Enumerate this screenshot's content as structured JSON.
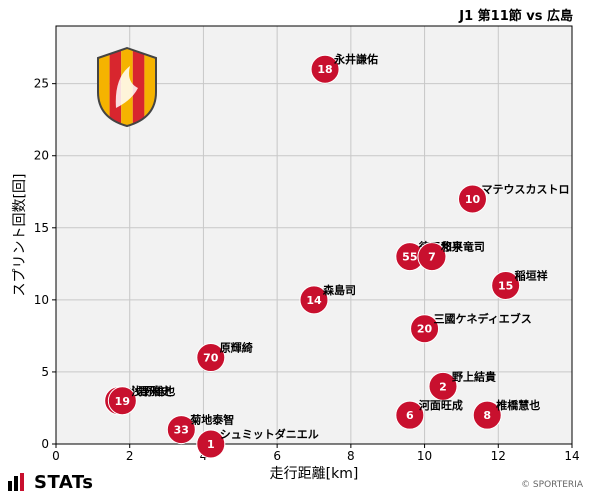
{
  "header": {
    "match_title": "J1 第11節 vs 広島"
  },
  "footer": {
    "brand": "STATs",
    "copyright": "© SPORTERIA"
  },
  "colors": {
    "marker": "#c8102e",
    "marker_text": "#ffffff",
    "grid": "#c8c8c8",
    "plot_bg": "#f2f2f2",
    "crest_yellow": "#f5b300",
    "crest_red": "#d8262e",
    "crest_outline": "#444444"
  },
  "icons": {
    "logo": "stats-bars-icon",
    "crest": "club-crest-icon"
  },
  "chart_data": {
    "type": "scatter",
    "xlabel": "走行距離[km]",
    "ylabel": "スプリント回数[回]",
    "xlim": [
      0,
      14
    ],
    "ylim": [
      0,
      29
    ],
    "xticks": [
      0,
      2,
      4,
      6,
      8,
      10,
      12,
      14
    ],
    "yticks": [
      0,
      5,
      10,
      15,
      20,
      25
    ],
    "grid": true,
    "points": [
      {
        "number": "18",
        "name": "永井謙佑",
        "x": 7.3,
        "y": 26
      },
      {
        "number": "10",
        "name": "マテウスカストロ",
        "x": 11.3,
        "y": 17
      },
      {
        "number": "55",
        "name": "徳元悠平",
        "x": 9.6,
        "y": 13
      },
      {
        "number": "7",
        "name": "和泉竜司",
        "x": 10.2,
        "y": 13
      },
      {
        "number": "15",
        "name": "稲垣祥",
        "x": 12.2,
        "y": 11
      },
      {
        "number": "14",
        "name": "森島司",
        "x": 7.0,
        "y": 10
      },
      {
        "number": "20",
        "name": "三國ケネディエブス",
        "x": 10.0,
        "y": 8
      },
      {
        "number": "70",
        "name": "原輝綺",
        "x": 4.2,
        "y": 6
      },
      {
        "number": "2",
        "name": "野上結貴",
        "x": 10.5,
        "y": 4
      },
      {
        "number": "6",
        "name": "河面旺成",
        "x": 9.6,
        "y": 2
      },
      {
        "number": "8",
        "name": "椎橋慧也",
        "x": 11.7,
        "y": 2
      },
      {
        "number": "4",
        "name": "小野雅史",
        "x": 1.7,
        "y": 3
      },
      {
        "number": "19",
        "name": "浅野雄也",
        "x": 1.8,
        "y": 3
      },
      {
        "number": "33",
        "name": "菊地泰智",
        "x": 3.4,
        "y": 1
      },
      {
        "number": "1",
        "name": "シュミットダニエル",
        "x": 4.2,
        "y": 0
      }
    ]
  }
}
